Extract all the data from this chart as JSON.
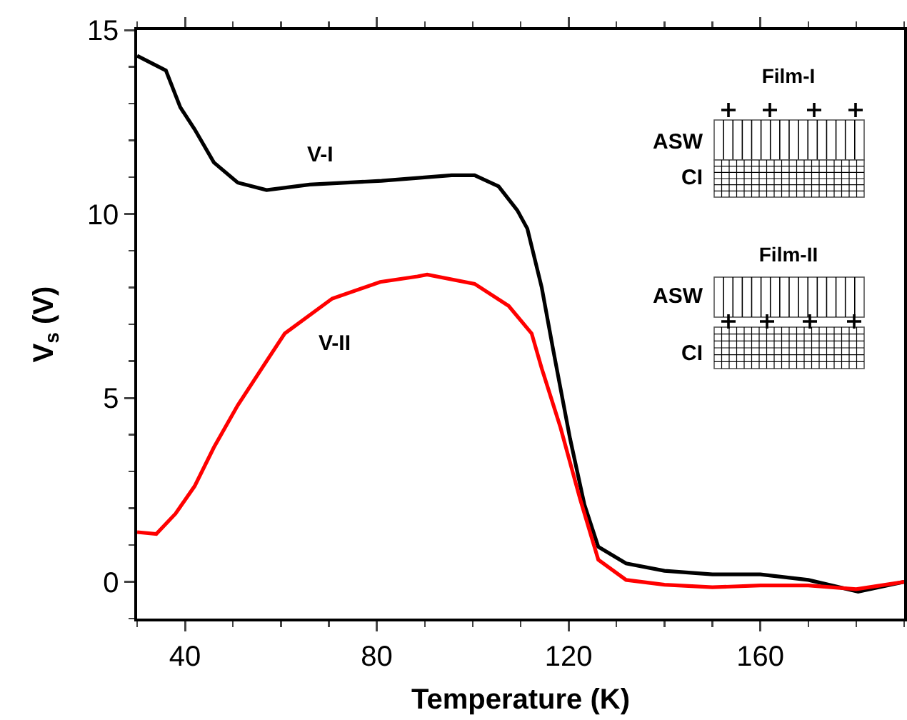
{
  "chart_data": {
    "type": "line",
    "xlabel": "Temperature (K)",
    "ylabel": "V$_{s}$ (V)",
    "xlim": [
      30,
      190
    ],
    "xticks": [
      40,
      80,
      120,
      160
    ],
    "ylim": [
      -1,
      15
    ],
    "yticks": [
      0,
      5,
      10,
      15
    ],
    "grid": false,
    "legend": false,
    "marker": "none",
    "line_style": "solid",
    "series": [
      {
        "name": "V-I",
        "color": "#000000",
        "x": [
          30,
          33,
          36,
          39,
          42,
          46,
          51,
          57,
          66,
          81,
          95.6,
          100.4,
          105.4,
          109.3,
          111.4,
          114.4,
          116.8,
          120.3,
          123.3,
          126.2,
          132,
          140,
          150,
          160,
          170,
          180.4,
          190
        ],
        "values": [
          14.3,
          14.1,
          13.9,
          12.9,
          12.3,
          11.4,
          10.85,
          10.65,
          10.8,
          10.9,
          11.05,
          11.05,
          10.75,
          10.1,
          9.6,
          8.0,
          6.3,
          3.9,
          2.1,
          0.95,
          0.5,
          0.3,
          0.2,
          0.2,
          0.05,
          -0.27,
          0
        ]
      },
      {
        "name": "V-II",
        "color": "#ff0000",
        "x": [
          30,
          34,
          38,
          42,
          46,
          51,
          56,
          60.8,
          70.7,
          80.7,
          88.5,
          90.5,
          100.4,
          107.5,
          112.3,
          114.4,
          118.3,
          122.4,
          126.2,
          132,
          140,
          150,
          160,
          170,
          180,
          190
        ],
        "values": [
          1.35,
          1.3,
          1.85,
          2.6,
          3.65,
          4.8,
          5.8,
          6.75,
          7.7,
          8.15,
          8.3,
          8.35,
          8.1,
          7.5,
          6.75,
          5.8,
          4.2,
          2.25,
          0.6,
          0.05,
          -0.08,
          -0.15,
          -0.1,
          -0.1,
          -0.2,
          0
        ]
      }
    ],
    "annotations": [
      "Film-I",
      "ASW",
      "CI",
      "Film-II",
      "ASW",
      "CI"
    ]
  }
}
